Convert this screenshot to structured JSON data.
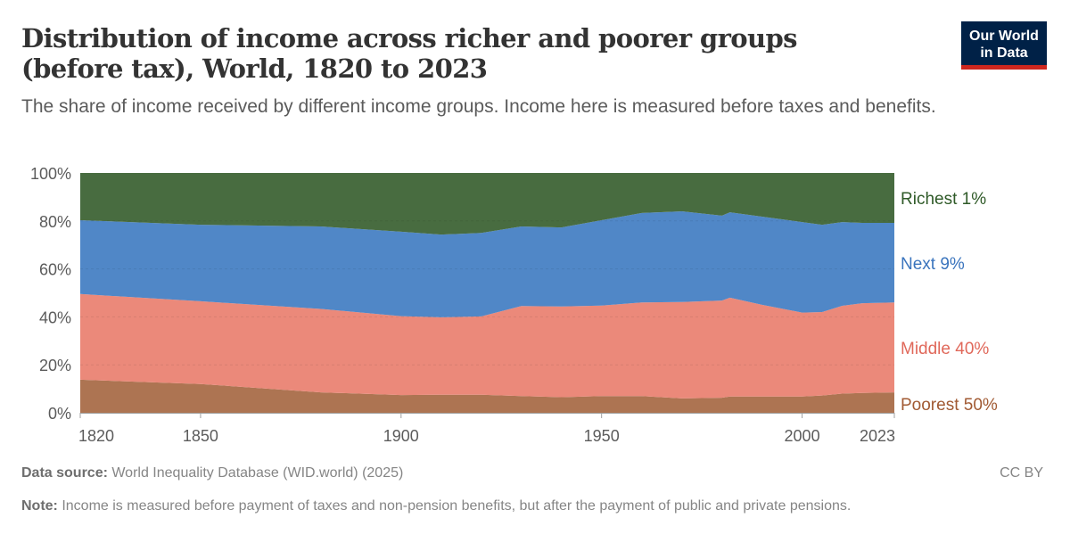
{
  "header": {
    "title": "Distribution of income across richer and poorer groups (before tax), World, 1820 to 2023",
    "subtitle": "The share of income received by different income groups. Income here is measured before taxes and benefits.",
    "logo_line1": "Our World",
    "logo_line2": "in Data"
  },
  "footer": {
    "source_label": "Data source:",
    "source_text": " World Inequality Database (WID.world) (2025)",
    "license": "CC BY",
    "note_label": "Note:",
    "note_text": " Income is measured before payment of taxes and non-pension benefits, but after the payment of public and private pensions."
  },
  "colors": {
    "richest_1": "#486c40",
    "next_9": "#5087c7",
    "middle_40": "#eb897a",
    "poorest_50": "#ad7452",
    "richest_1_label": "#2f5a28",
    "next_9_label": "#3a74bd",
    "middle_40_label": "#e0685a",
    "poorest_50_label": "#a15a33"
  },
  "chart_data": {
    "type": "area",
    "stacked": true,
    "title": "Distribution of income across richer and poorer groups (before tax), World, 1820 to 2023",
    "xlabel": "",
    "ylabel": "",
    "ylim": [
      0,
      100
    ],
    "y_ticks": [
      "0%",
      "20%",
      "40%",
      "60%",
      "80%",
      "100%"
    ],
    "x_ticks": [
      "1820",
      "1850",
      "1900",
      "1950",
      "2000",
      "2023"
    ],
    "grid": true,
    "legend_position": "right (inline labels)",
    "x": [
      1820,
      1850,
      1880,
      1900,
      1910,
      1920,
      1930,
      1940,
      1950,
      1960,
      1970,
      1980,
      1982,
      1990,
      2000,
      2005,
      2010,
      2015,
      2023
    ],
    "series": [
      {
        "name": "Poorest 50%",
        "values": [
          13.8,
          12.0,
          8.5,
          7.4,
          7.5,
          7.5,
          7.0,
          6.5,
          7.0,
          7.0,
          6.0,
          6.3,
          6.8,
          6.8,
          6.8,
          7.2,
          8.0,
          8.3,
          8.5
        ]
      },
      {
        "name": "Middle 40%",
        "values": [
          35.7,
          34.5,
          34.8,
          32.9,
          32.3,
          32.7,
          37.5,
          37.8,
          37.7,
          39.0,
          40.2,
          40.5,
          41.2,
          38.2,
          35.0,
          34.8,
          36.6,
          37.4,
          37.5
        ]
      },
      {
        "name": "Next 9%",
        "values": [
          30.8,
          31.9,
          34.4,
          35.2,
          34.5,
          34.8,
          33.2,
          33.0,
          35.6,
          37.3,
          37.8,
          35.4,
          35.6,
          36.8,
          37.7,
          36.4,
          34.9,
          33.5,
          33.2
        ]
      },
      {
        "name": "Richest 1%",
        "values": [
          19.7,
          21.6,
          22.3,
          24.5,
          25.7,
          25.0,
          22.3,
          22.7,
          19.7,
          16.7,
          16.0,
          17.8,
          16.4,
          18.2,
          20.5,
          21.6,
          20.5,
          20.8,
          20.8
        ]
      }
    ],
    "legend": [
      "Richest 1%",
      "Next 9%",
      "Middle 40%",
      "Poorest 50%"
    ]
  }
}
